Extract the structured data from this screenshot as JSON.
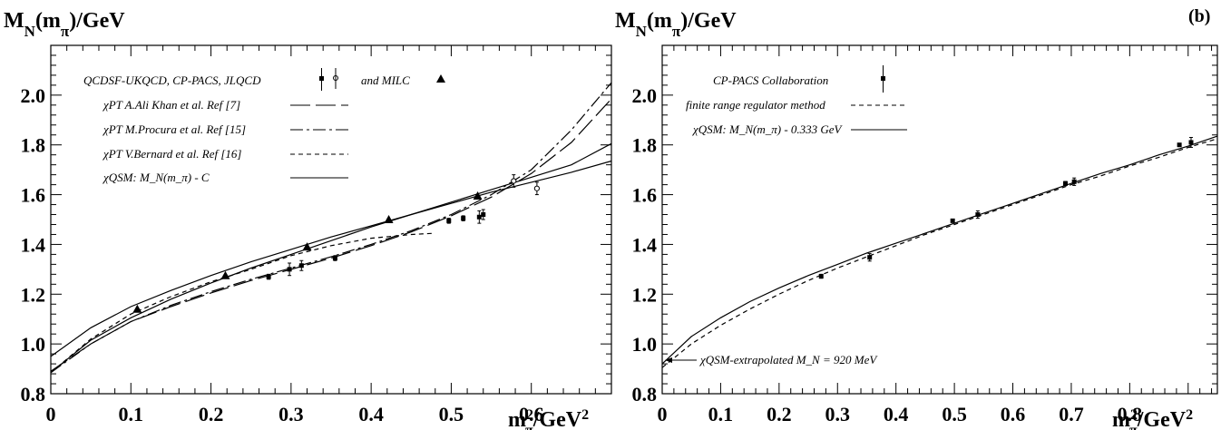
{
  "panels": [
    {
      "ylabel": "M_N(m_π)/GeV",
      "xlabel": "m_π²/GeV²",
      "panel_label": "",
      "legend": [
        {
          "text": "QCDSF-UKQCD, CP-PACS, JLQCD",
          "suffix": "and   MILC",
          "marker": "square+circle+triangle"
        },
        {
          "text": "χPT  A.Ali Khan et al. Ref [7]",
          "style": "long-dash"
        },
        {
          "text": "χPT M.Procura et al. Ref [15]",
          "style": "dash-dot"
        },
        {
          "text": "χPT V.Bernard et al. Ref [16]",
          "style": "short-dash"
        },
        {
          "text": "χQSM: M_N(m_π) - C",
          "style": "solid"
        }
      ]
    },
    {
      "ylabel": "M_N(m_π)/GeV",
      "xlabel": "m_π²/GeV²",
      "panel_label": "(b)",
      "legend": [
        {
          "text": "CP-PACS Collaboration",
          "marker": "square"
        },
        {
          "text": "finite range regulator method",
          "style": "short-dash"
        },
        {
          "text": "χQSM: M_N(m_π) - 0.333 GeV",
          "style": "solid"
        }
      ],
      "annotation": "χQSM-extrapolated M_N = 920 MeV"
    }
  ],
  "chart_data": [
    {
      "type": "scatter",
      "xlim": [
        0,
        0.7
      ],
      "ylim": [
        0.8,
        2.2
      ],
      "x_ticks": [
        0,
        0.1,
        0.2,
        0.3,
        0.4,
        0.5,
        0.6
      ],
      "x_tick_labels": [
        "0",
        "0.1",
        "0.2",
        "0.3",
        "0.4",
        "0.5",
        "0.6"
      ],
      "y_ticks": [
        0.8,
        1.0,
        1.2,
        1.4,
        1.6,
        1.8,
        2.0
      ],
      "y_tick_labels": [
        "0.8",
        "1.0",
        "1.2",
        "1.4",
        "1.6",
        "1.8",
        "2.0"
      ],
      "legend_position": "top",
      "series": [
        {
          "name": "QCDSF-UKQCD, CP-PACS, JLQCD",
          "kind": "points",
          "marker": "square",
          "x": [
            0.272,
            0.298,
            0.313,
            0.355,
            0.497,
            0.515,
            0.535,
            0.54
          ],
          "y": [
            1.27,
            1.3,
            1.315,
            1.345,
            1.495,
            1.505,
            1.51,
            1.52
          ],
          "err": [
            0.01,
            0.025,
            0.02,
            0.01,
            0.01,
            0.01,
            0.025,
            0.02
          ]
        },
        {
          "name": "",
          "kind": "points",
          "marker": "circle",
          "x": [
            0.578,
            0.607
          ],
          "y": [
            1.655,
            1.625
          ],
          "err": [
            0.025,
            0.025
          ]
        },
        {
          "name": "MILC",
          "kind": "points",
          "marker": "triangle",
          "x": [
            0.108,
            0.218,
            0.32,
            0.422,
            0.533
          ],
          "y": [
            1.14,
            1.275,
            1.39,
            1.5,
            1.595
          ],
          "err": [
            0,
            0,
            0,
            0,
            0
          ]
        },
        {
          "name": "χPT  A.Ali Khan et al. Ref [7]",
          "kind": "line",
          "style": "long-dash",
          "x": [
            0,
            0.05,
            0.1,
            0.15,
            0.2,
            0.25,
            0.3,
            0.35,
            0.4,
            0.45,
            0.5,
            0.55,
            0.6,
            0.65,
            0.7
          ],
          "y": [
            0.89,
            1.0,
            1.09,
            1.15,
            1.205,
            1.255,
            1.3,
            1.345,
            1.395,
            1.45,
            1.515,
            1.59,
            1.685,
            1.81,
            1.985
          ]
        },
        {
          "name": "χPT M.Procura et al. Ref [15]",
          "kind": "line",
          "style": "dash-dot",
          "x": [
            0,
            0.05,
            0.1,
            0.15,
            0.2,
            0.25,
            0.3,
            0.35,
            0.4,
            0.45,
            0.5,
            0.55,
            0.6,
            0.65,
            0.7
          ],
          "y": [
            0.885,
            1.0,
            1.09,
            1.155,
            1.21,
            1.26,
            1.305,
            1.35,
            1.4,
            1.455,
            1.52,
            1.6,
            1.7,
            1.86,
            2.05
          ]
        },
        {
          "name": "χPT V.Bernard et al. Ref [16]",
          "kind": "line",
          "style": "short-dash",
          "x": [
            0,
            0.05,
            0.1,
            0.15,
            0.2,
            0.25,
            0.3,
            0.35,
            0.4,
            0.45,
            0.48
          ],
          "y": [
            0.885,
            1.02,
            1.12,
            1.19,
            1.25,
            1.3,
            1.355,
            1.395,
            1.425,
            1.44,
            1.445
          ]
        },
        {
          "name": "χQSM: M_N(m_π) - C",
          "kind": "line",
          "style": "solid",
          "x": [
            0,
            0.05,
            0.1,
            0.15,
            0.2,
            0.25,
            0.3,
            0.35,
            0.4,
            0.45,
            0.5,
            0.55,
            0.6,
            0.65,
            0.7
          ],
          "y": [
            0.95,
            1.065,
            1.15,
            1.215,
            1.275,
            1.33,
            1.38,
            1.43,
            1.475,
            1.52,
            1.565,
            1.61,
            1.65,
            1.69,
            1.735
          ]
        },
        {
          "name": "",
          "kind": "line",
          "style": "solid",
          "x": [
            0,
            0.05,
            0.1,
            0.15,
            0.2,
            0.25,
            0.3,
            0.35,
            0.4,
            0.45,
            0.5,
            0.55,
            0.6,
            0.65,
            0.7
          ],
          "y": [
            0.885,
            1.015,
            1.105,
            1.18,
            1.245,
            1.305,
            1.36,
            1.415,
            1.47,
            1.52,
            1.57,
            1.62,
            1.67,
            1.72,
            1.805
          ]
        }
      ]
    },
    {
      "type": "scatter",
      "xlim": [
        0,
        0.95
      ],
      "ylim": [
        0.8,
        2.2
      ],
      "x_ticks": [
        0,
        0.1,
        0.2,
        0.3,
        0.4,
        0.5,
        0.6,
        0.7,
        0.8
      ],
      "x_tick_labels": [
        "0",
        "0.1",
        "0.2",
        "0.3",
        "0.4",
        "0.5",
        "0.6",
        "0.7",
        "0.8"
      ],
      "y_ticks": [
        0.8,
        1.0,
        1.2,
        1.4,
        1.6,
        1.8,
        2.0
      ],
      "y_tick_labels": [
        "0.8",
        "1.0",
        "1.2",
        "1.4",
        "1.6",
        "1.8",
        "2.0"
      ],
      "legend_position": "top",
      "series": [
        {
          "name": "CP-PACS Collaboration",
          "kind": "points",
          "marker": "square",
          "x": [
            0.272,
            0.355,
            0.497,
            0.54,
            0.69,
            0.705,
            0.885,
            0.905
          ],
          "y": [
            1.272,
            1.348,
            1.495,
            1.52,
            1.645,
            1.652,
            1.8,
            1.81
          ],
          "err": [
            0.008,
            0.015,
            0.006,
            0.015,
            0.008,
            0.015,
            0.006,
            0.02
          ]
        },
        {
          "name": "finite range regulator method",
          "kind": "line",
          "style": "short-dash",
          "x": [
            0,
            0.05,
            0.1,
            0.15,
            0.2,
            0.25,
            0.3,
            0.35,
            0.4,
            0.45,
            0.5,
            0.55,
            0.6,
            0.65,
            0.7,
            0.75,
            0.8,
            0.85,
            0.9,
            0.95
          ],
          "y": [
            0.905,
            1.0,
            1.075,
            1.14,
            1.2,
            1.255,
            1.305,
            1.35,
            1.395,
            1.44,
            1.48,
            1.52,
            1.56,
            1.6,
            1.64,
            1.675,
            1.715,
            1.75,
            1.79,
            1.825
          ]
        },
        {
          "name": "χQSM: M_N(m_π) - 0.333 GeV",
          "kind": "line",
          "style": "solid",
          "x": [
            0,
            0.05,
            0.1,
            0.15,
            0.2,
            0.25,
            0.3,
            0.35,
            0.4,
            0.45,
            0.5,
            0.55,
            0.6,
            0.65,
            0.7,
            0.75,
            0.8,
            0.85,
            0.9,
            0.95
          ],
          "y": [
            0.92,
            1.03,
            1.105,
            1.17,
            1.225,
            1.275,
            1.32,
            1.365,
            1.405,
            1.445,
            1.485,
            1.525,
            1.565,
            1.605,
            1.645,
            1.685,
            1.72,
            1.76,
            1.795,
            1.835
          ]
        }
      ]
    }
  ]
}
